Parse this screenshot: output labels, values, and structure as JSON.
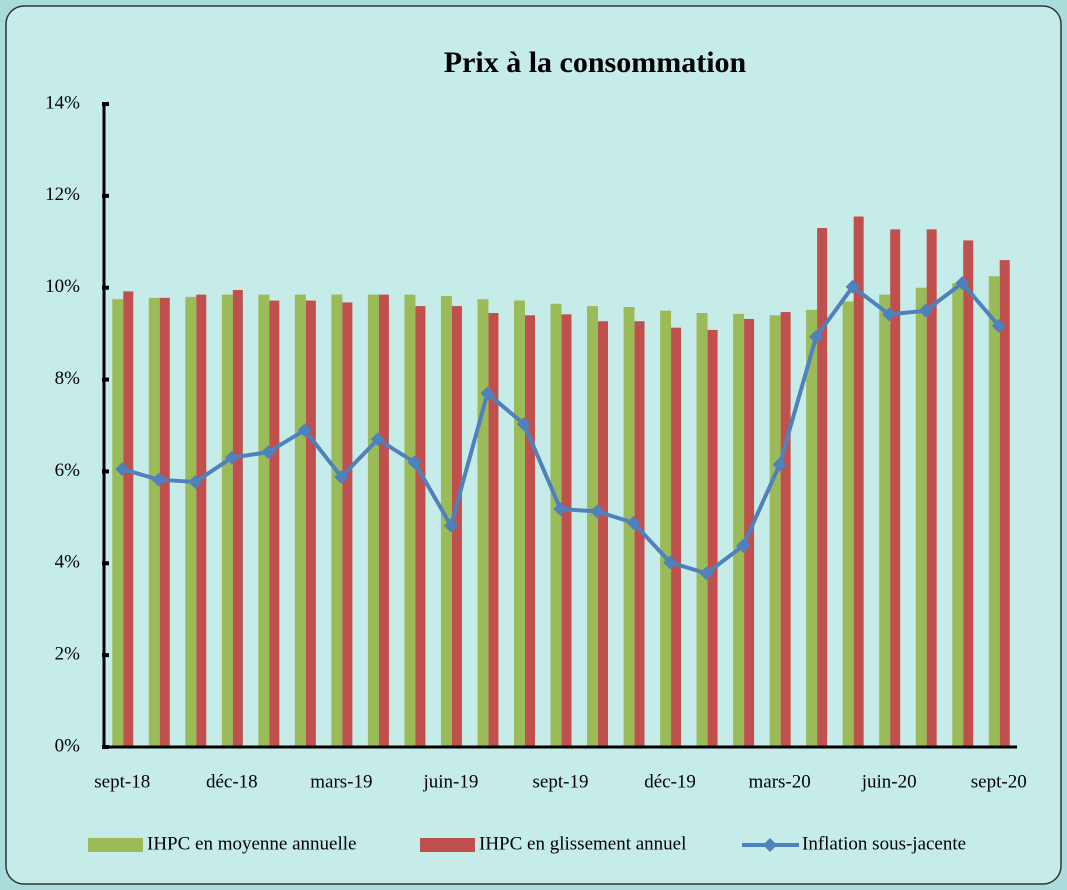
{
  "chart_data": {
    "type": "bar-line",
    "title": "Prix à la consommation",
    "categories": [
      "sept-18",
      null,
      null,
      "déc-18",
      null,
      null,
      "mars-19",
      null,
      null,
      "juin-19",
      null,
      null,
      "sept-19",
      null,
      null,
      "déc-19",
      null,
      null,
      "mars-20",
      null,
      null,
      "juin-20",
      null,
      null,
      "sept-20"
    ],
    "series": [
      {
        "name": "IHPC en moyenne annuelle",
        "type": "bar",
        "color": "#9bbb59",
        "values": [
          9.75,
          9.78,
          9.8,
          9.85,
          9.85,
          9.85,
          9.85,
          9.85,
          9.85,
          9.82,
          9.75,
          9.72,
          9.65,
          9.6,
          9.58,
          9.5,
          9.45,
          9.43,
          9.4,
          9.52,
          9.7,
          9.85,
          10.0,
          10.1,
          10.25
        ]
      },
      {
        "name": "IHPC en glissement annuel",
        "type": "bar",
        "color": "#c0504d",
        "values": [
          9.92,
          9.78,
          9.85,
          9.95,
          9.72,
          9.72,
          9.68,
          9.85,
          9.6,
          9.6,
          9.45,
          9.4,
          9.42,
          9.27,
          9.27,
          9.13,
          9.08,
          9.32,
          9.47,
          11.3,
          11.55,
          11.27,
          11.27,
          11.03,
          10.6
        ]
      },
      {
        "name": "Inflation sous-jacente",
        "type": "line",
        "color": "#4f81bd",
        "values": [
          6.05,
          5.82,
          5.77,
          6.3,
          6.42,
          6.9,
          5.88,
          6.7,
          6.2,
          4.82,
          7.7,
          7.03,
          5.18,
          5.13,
          4.88,
          4.02,
          3.78,
          4.38,
          6.15,
          8.93,
          10.02,
          9.42,
          9.5,
          10.1,
          9.17
        ]
      }
    ],
    "ylim": [
      0,
      14
    ],
    "yticks": [
      {
        "value": 0,
        "label": "0%"
      },
      {
        "value": 2,
        "label": "2%"
      },
      {
        "value": 4,
        "label": "4%"
      },
      {
        "value": 6,
        "label": "6%"
      },
      {
        "value": 8,
        "label": "8%"
      },
      {
        "value": 10,
        "label": "10%"
      },
      {
        "value": 12,
        "label": "12%"
      },
      {
        "value": 14,
        "label": "14%"
      }
    ],
    "grid": false,
    "legend": "bottom"
  }
}
